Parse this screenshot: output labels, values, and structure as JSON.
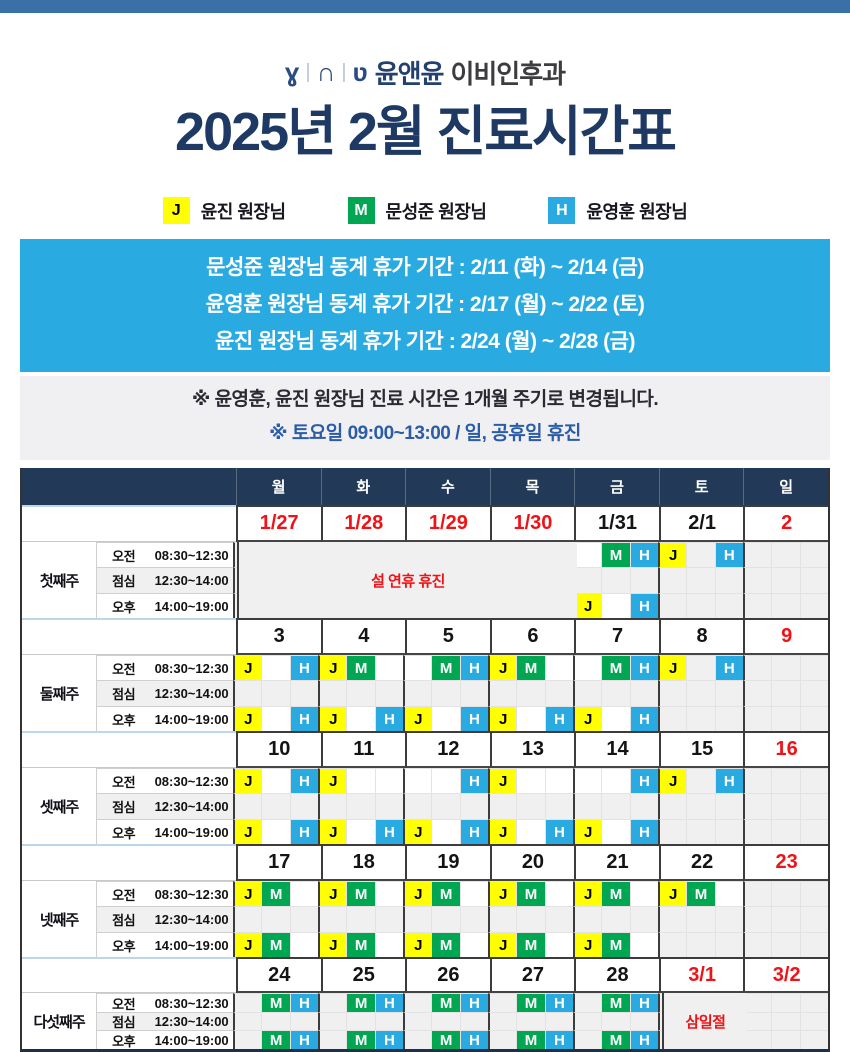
{
  "logo": {
    "glyphs": [
      "ɣ",
      "∩",
      "ʋ"
    ],
    "name": "윤앤윤",
    "suffix": "이비인후과"
  },
  "title": "2025년 2월 진료시간표",
  "legend": [
    {
      "letter": "J",
      "color": "#ffff00",
      "text_color": "#000000",
      "label": "윤진 원장님"
    },
    {
      "letter": "M",
      "color": "#00a651",
      "text_color": "#ffffff",
      "label": "문성준 원장님"
    },
    {
      "letter": "H",
      "color": "#29abe2",
      "text_color": "#ffffff",
      "label": "윤영훈 원장님"
    }
  ],
  "notice_blue": {
    "bg": "#29abe2",
    "lines": [
      "문성준 원장님 동계 휴가 기간 : 2/11 (화) ~ 2/14 (금)",
      "윤영훈 원장님 동계 휴가 기간 : 2/17 (월) ~ 2/22 (토)",
      "윤진 원장님 동계 휴가 기간 : 2/24 (월) ~ 2/28 (금)"
    ]
  },
  "notice_gray": {
    "lines": [
      {
        "text": "※ 윤영훈, 윤진 원장님 진료 시간은 1개월 주기로 변경됩니다.",
        "color": "#2a2a33"
      },
      {
        "text": "※ 토요일  09:00~13:00 / 일, 공휴일 휴진",
        "color": "#2b5ca8"
      }
    ]
  },
  "schedule": {
    "day_headers": [
      "월",
      "화",
      "수",
      "목",
      "금",
      "토",
      "일"
    ],
    "periods": [
      {
        "key": "am",
        "name": "오전",
        "time": "08:30~12:30"
      },
      {
        "key": "lunch",
        "name": "점심",
        "time": "12:30~14:00"
      },
      {
        "key": "pm",
        "name": "오후",
        "time": "14:00~19:00"
      }
    ],
    "weeks": [
      {
        "label": "첫째주",
        "dates": [
          {
            "t": "1/27",
            "r": true
          },
          {
            "t": "1/28",
            "r": true
          },
          {
            "t": "1/29",
            "r": true
          },
          {
            "t": "1/30",
            "r": true
          },
          {
            "t": "1/31"
          },
          {
            "t": "2/1"
          },
          {
            "t": "2",
            "r": true
          }
        ],
        "am": [
          "ggg",
          "ggg",
          "ggg",
          "ggg",
          ".MH",
          "JgH",
          "ggg"
        ],
        "lunch": [
          "ggg",
          "ggg",
          "ggg",
          "ggg",
          "ggg",
          "ggg",
          "ggg"
        ],
        "pm": [
          "ggg",
          "ggg",
          "ggg",
          "ggg",
          "J.H",
          "ggg",
          "ggg"
        ],
        "merges": [
          {
            "col": 0,
            "span": 4,
            "text": "설 연휴 휴진"
          }
        ]
      },
      {
        "label": "둘째주",
        "dates": [
          {
            "t": "3"
          },
          {
            "t": "4"
          },
          {
            "t": "5"
          },
          {
            "t": "6"
          },
          {
            "t": "7"
          },
          {
            "t": "8"
          },
          {
            "t": "9",
            "r": true
          }
        ],
        "am": [
          "J.H",
          "JM.",
          ".MH",
          "JM.",
          ".MH",
          "JgH",
          "ggg"
        ],
        "lunch": [
          "ggg",
          "ggg",
          "ggg",
          "ggg",
          "ggg",
          "ggg",
          "ggg"
        ],
        "pm": [
          "J.H",
          "J.H",
          "J.H",
          "J.H",
          "J.H",
          "ggg",
          "ggg"
        ],
        "merges": []
      },
      {
        "label": "셋째주",
        "dates": [
          {
            "t": "10"
          },
          {
            "t": "11"
          },
          {
            "t": "12"
          },
          {
            "t": "13"
          },
          {
            "t": "14"
          },
          {
            "t": "15"
          },
          {
            "t": "16",
            "r": true
          }
        ],
        "am": [
          "J.H",
          "J..",
          "..H",
          "J..",
          "..H",
          "JgH",
          "ggg"
        ],
        "lunch": [
          "ggg",
          "ggg",
          "ggg",
          "ggg",
          "ggg",
          "ggg",
          "ggg"
        ],
        "pm": [
          "J.H",
          "J.H",
          "J.H",
          "J.H",
          "J.H",
          "ggg",
          "ggg"
        ],
        "merges": []
      },
      {
        "label": "넷째주",
        "dates": [
          {
            "t": "17"
          },
          {
            "t": "18"
          },
          {
            "t": "19"
          },
          {
            "t": "20"
          },
          {
            "t": "21"
          },
          {
            "t": "22"
          },
          {
            "t": "23",
            "r": true
          }
        ],
        "am": [
          "JM.",
          "JM.",
          "JM.",
          "JM.",
          "JM.",
          "JM.",
          "ggg"
        ],
        "lunch": [
          "ggg",
          "ggg",
          "ggg",
          "ggg",
          "ggg",
          "ggg",
          "ggg"
        ],
        "pm": [
          "JM.",
          "JM.",
          "JM.",
          "JM.",
          "JM.",
          "ggg",
          "ggg"
        ],
        "merges": []
      },
      {
        "label": "다섯째주",
        "small": true,
        "dates": [
          {
            "t": "24"
          },
          {
            "t": "25"
          },
          {
            "t": "26"
          },
          {
            "t": "27"
          },
          {
            "t": "28"
          },
          {
            "t": "3/1",
            "r": true
          },
          {
            "t": "3/2",
            "r": true
          }
        ],
        "am": [
          "gMH",
          "gMH",
          "gMH",
          "gMH",
          "gMH",
          "ggg",
          "ggg"
        ],
        "lunch": [
          "ggg",
          "ggg",
          "ggg",
          "ggg",
          "ggg",
          "ggg",
          "ggg"
        ],
        "pm": [
          "gMH",
          "gMH",
          "gMH",
          "gMH",
          "gMH",
          "ggg",
          "ggg"
        ],
        "merges": [
          {
            "col": 5,
            "span": 1,
            "text": "삼일절"
          }
        ]
      }
    ]
  },
  "colors": {
    "topbar": "#3a70a8",
    "title_navy": "#1e3a64",
    "header_navy": "#223a57",
    "doctor_J": "#ffff00",
    "doctor_M": "#00a651",
    "doctor_H": "#29abe2",
    "holiday_red": "#ef1216",
    "closed_gray": "#f0f0f0"
  }
}
